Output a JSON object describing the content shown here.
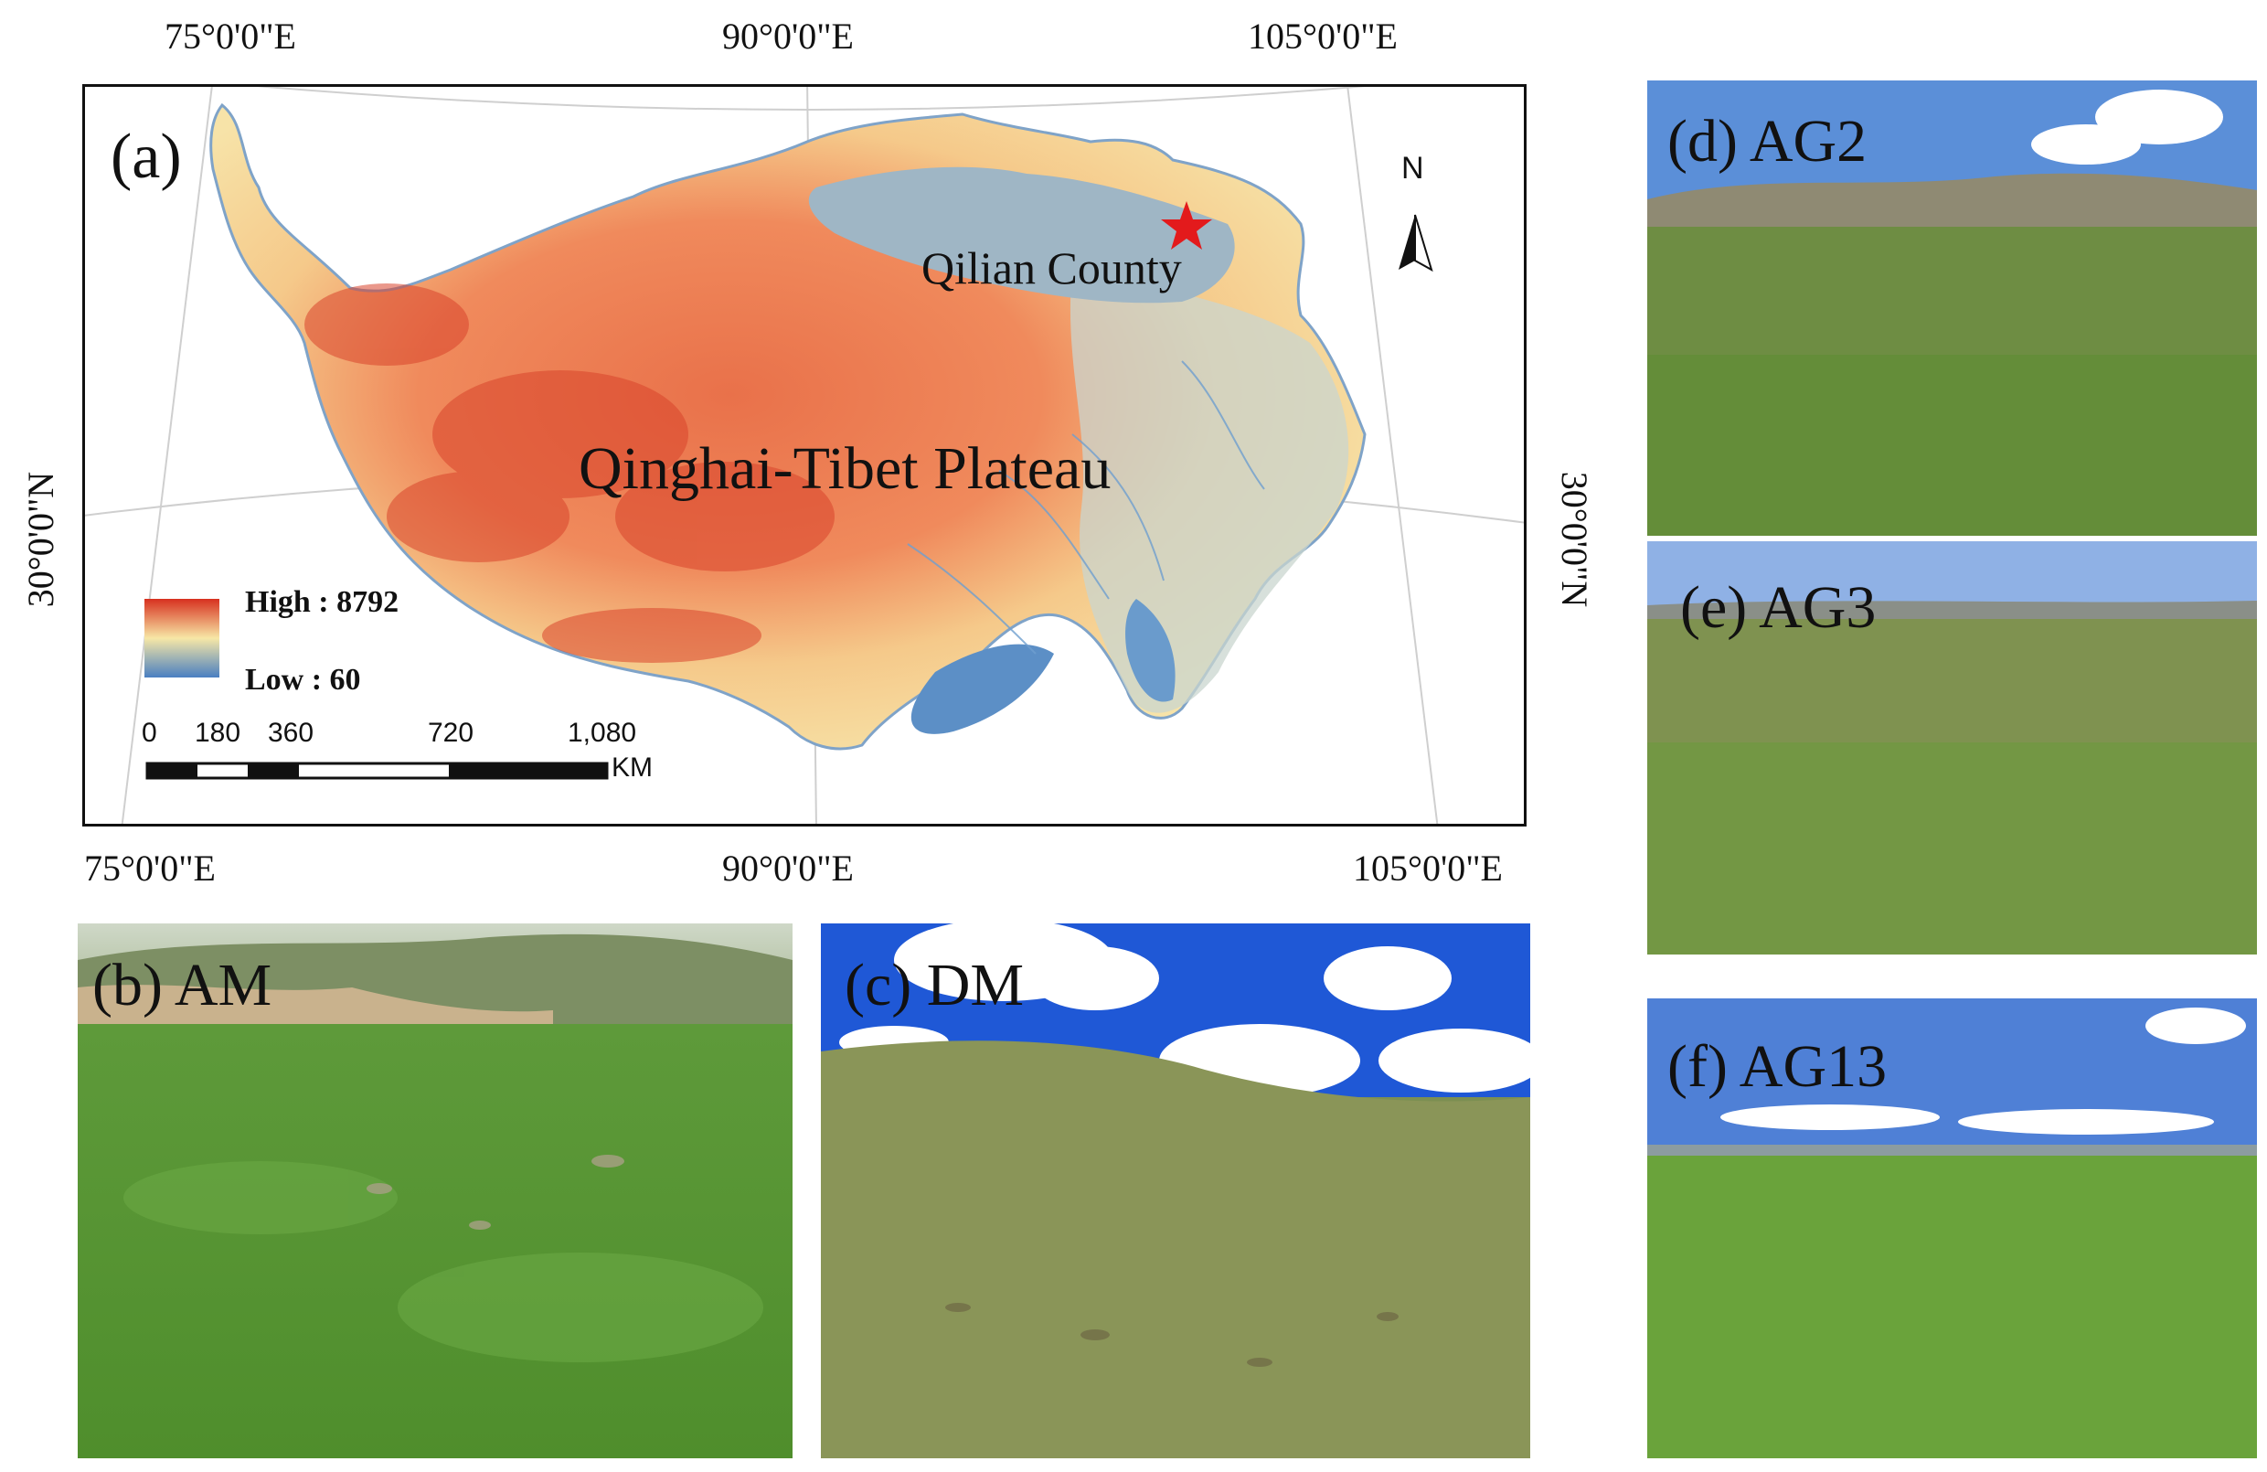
{
  "map": {
    "panel_label": "(a)",
    "region_label": "Qinghai-Tibet Plateau",
    "county_label": "Qilian County",
    "north_label": "N",
    "top_longitudes": [
      "75°0'0\"E",
      "90°0'0\"E",
      "105°0'0\"E"
    ],
    "bottom_longitudes": [
      "75°0'0\"E",
      "90°0'0\"E",
      "105°0'0\"E"
    ],
    "left_latitude": "30°0'0\"N",
    "right_latitude": "30°0'0\"N",
    "legend": {
      "high_label": "High : 8792",
      "low_label": "Low : 60",
      "high_color": "#d7301f",
      "mid_color": "#f7e7a6",
      "low_color": "#4a7fc1"
    },
    "scalebar": {
      "ticks": [
        "0",
        "180",
        "360",
        "720",
        "1,080"
      ],
      "unit": "KM"
    },
    "marker_color": "#e31a1c",
    "marker_icon": "star-icon"
  },
  "photos": [
    {
      "label": "(b) AM"
    },
    {
      "label": "(c) DM"
    },
    {
      "label": "(d) AG2"
    },
    {
      "label": "(e) AG3"
    },
    {
      "label": "(f) AG13"
    }
  ]
}
